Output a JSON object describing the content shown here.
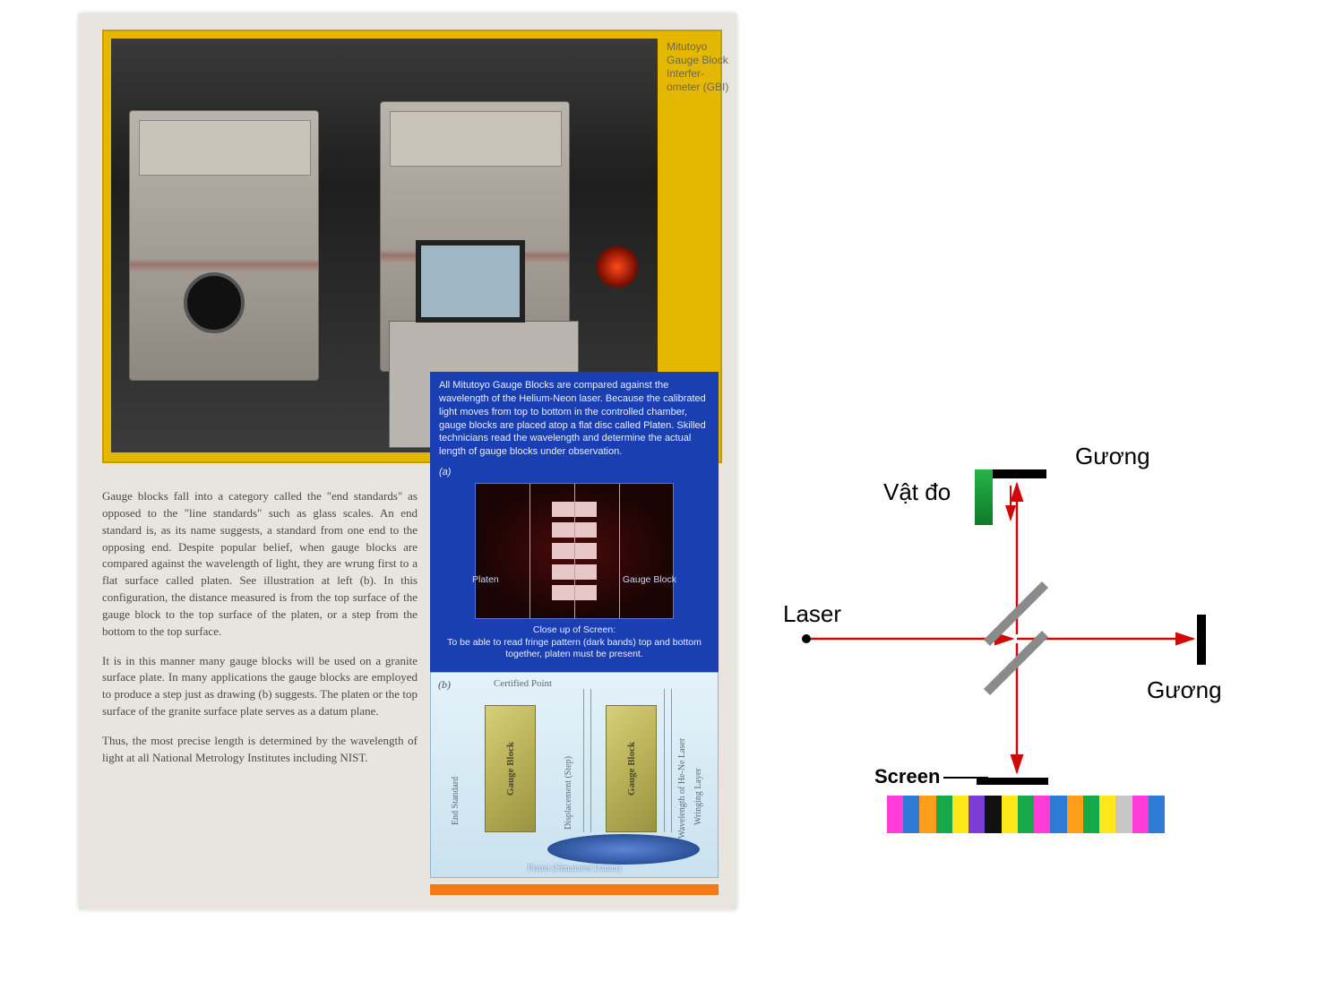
{
  "scan": {
    "sidelabel": "Mitutoyo Gauge Block Interfer-ometer (GBI)",
    "paragraphs": [
      "Gauge blocks fall into a category called the \"end standards\" as opposed to the \"line standards\" such as glass scales. An end standard is, as its name suggests, a standard from one end to the opposing end. Despite popular belief, when gauge blocks are compared against the wavelength of light, they are wrung first to a flat surface called platen. See illustration at left (b). In this configuration, the distance measured is from the top surface of the gauge block to the top surface of the platen, or a step from the bottom to the top surface.",
      "It is in this manner many gauge blocks will be used on a granite surface plate. In many applications the gauge blocks are employed to produce a step just as drawing (b) suggests. The platen or the top surface of the granite surface plate serves as a datum plane.",
      "Thus, the most precise length is determined by the wavelength of light at all National Metrology Institutes including NIST."
    ],
    "blue": {
      "intro": "All Mitutoyo Gauge Blocks are compared against the wavelength of the Helium-Neon laser. Because the calibrated light moves from top to bottom in the controlled chamber, gauge blocks are placed atop a flat disc called Platen. Skilled technicians read the wavelength and determine the actual length of gauge blocks under observation.",
      "label_a": "(a)",
      "platen": "Platen",
      "gaugeblock": "Gauge Block",
      "caption_title": "Close up of Screen:",
      "caption_body": "To be able to read fringe pattern (dark bands) top and bottom together, platen must be present."
    },
    "cyan": {
      "label_b": "(b)",
      "certified": "Certified Point",
      "end_standard": "End Standard",
      "gauge_block": "Gauge Block",
      "displacement": "Displacement (Step)",
      "wavelength": "Wavelength of He-Ne Laser",
      "wringing": "Wringing Layer",
      "platen_caption": "Platen (Simulated Datum)"
    }
  },
  "diagram": {
    "guong_top": "Gương",
    "guong_right": "Gương",
    "vat_do": "Vật đo",
    "laser": "Laser",
    "screen": "Screen",
    "beam_color": "#d10808",
    "splitter_color": "#8a8a8a",
    "spectrum_colors": [
      "#ff3bd8",
      "#2e7bd6",
      "#ff9e1a",
      "#17a84a",
      "#ffe81a",
      "#7a3bd6",
      "#111111",
      "#ffe81a",
      "#17a84a",
      "#ff3bd8",
      "#2e7bd6",
      "#ff9e1a",
      "#17a84a",
      "#ffe81a",
      "#c7c7c7",
      "#ff3bd8",
      "#2e7bd6"
    ]
  }
}
